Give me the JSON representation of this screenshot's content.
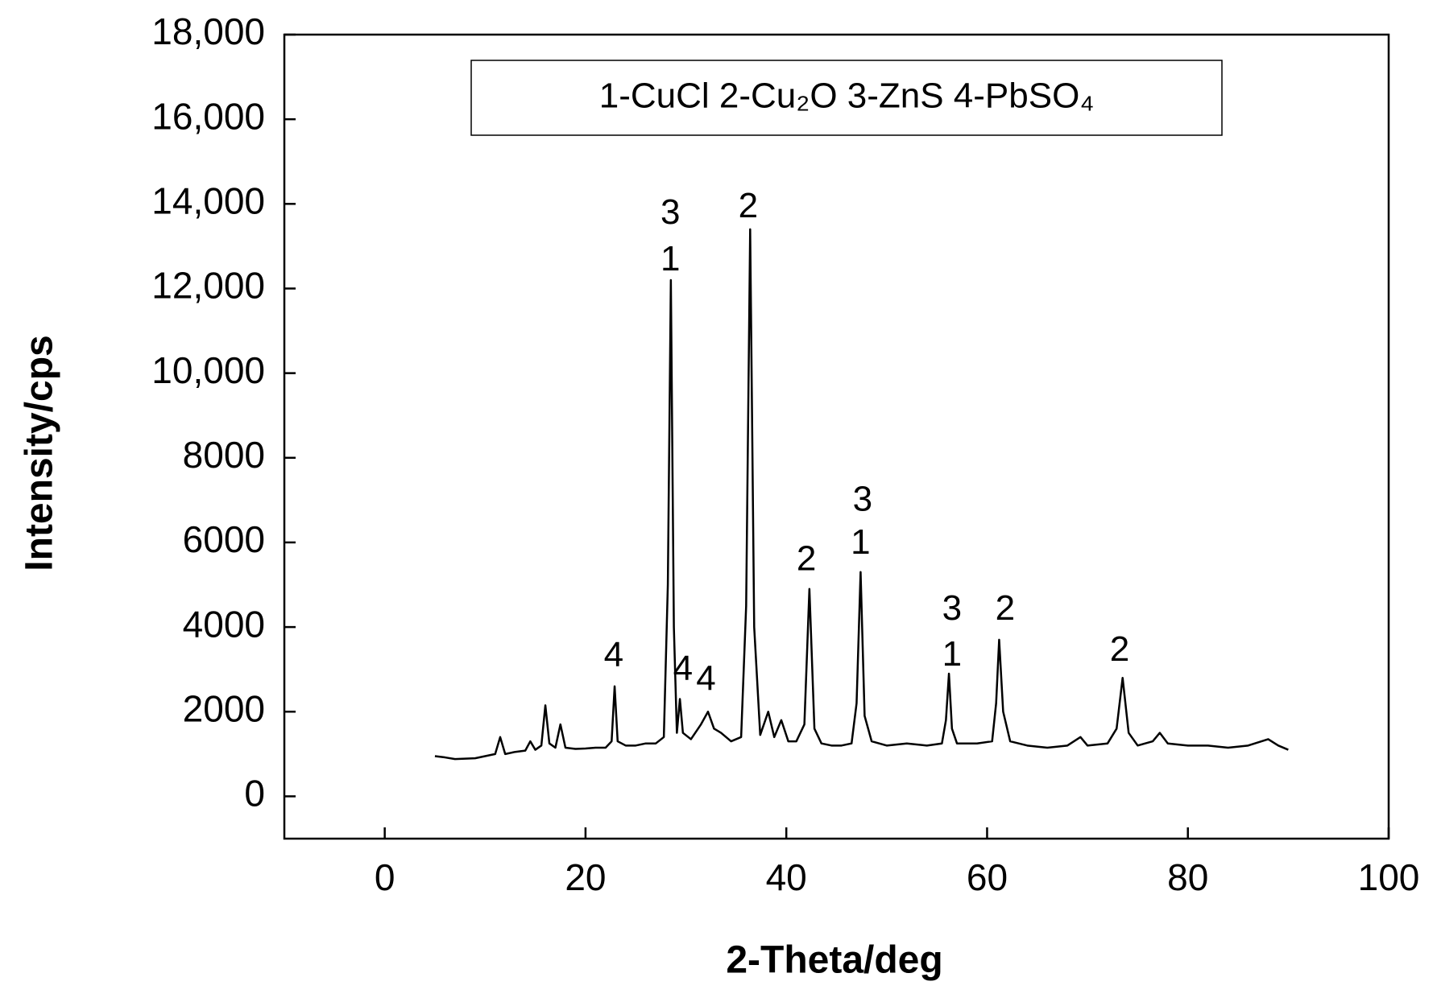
{
  "chart_data": {
    "type": "line",
    "annotation_box": "1-CuCl  2-Cu₂O 3-ZnS  4-PbSO₄",
    "xlabel": "2-Theta/deg",
    "ylabel": "Intensity/cps",
    "xlim": [
      -10,
      100
    ],
    "ylim": [
      -1000,
      18000
    ],
    "xticks": [
      0,
      20,
      40,
      60,
      80,
      100
    ],
    "yticks": [
      0,
      2000,
      4000,
      6000,
      8000,
      {
        "value": 10000,
        "label": "10,000"
      },
      {
        "value": 12000,
        "label": "12,000"
      },
      {
        "value": 14000,
        "label": "14,000"
      },
      {
        "value": 16000,
        "label": "16,000"
      },
      {
        "value": 18000,
        "label": "18,000"
      }
    ],
    "x": [
      5,
      6,
      7,
      8,
      9,
      10,
      11,
      11.5,
      12,
      13,
      14,
      14.5,
      15,
      15.6,
      16,
      16.4,
      17,
      17.5,
      18,
      19,
      20,
      21,
      22,
      22.6,
      22.9,
      23.2,
      24,
      25,
      26,
      27,
      27.8,
      28.2,
      28.5,
      28.8,
      29.1,
      29.4,
      29.7,
      30.5,
      31.5,
      32.2,
      32.8,
      33.5,
      34.5,
      35.5,
      36.0,
      36.4,
      36.8,
      37.4,
      38.2,
      38.8,
      39.5,
      40.2,
      41,
      41.8,
      42.3,
      42.8,
      43.5,
      44.5,
      45.5,
      46.5,
      47.0,
      47.4,
      47.8,
      48.5,
      50,
      52,
      54,
      55.5,
      55.9,
      56.2,
      56.5,
      57,
      59,
      60.5,
      60.9,
      61.2,
      61.6,
      62.3,
      64,
      66,
      68,
      69.3,
      70,
      72,
      72.9,
      73.5,
      74.1,
      75,
      76.5,
      77.2,
      78,
      80,
      82,
      84,
      86,
      88,
      89,
      90
    ],
    "series": [
      {
        "color": "#000000",
        "values": [
          950,
          920,
          880,
          890,
          900,
          950,
          1000,
          1400,
          1000,
          1050,
          1080,
          1300,
          1100,
          1200,
          2150,
          1250,
          1150,
          1700,
          1150,
          1120,
          1130,
          1150,
          1150,
          1300,
          2600,
          1300,
          1200,
          1200,
          1250,
          1250,
          1400,
          5000,
          12200,
          4000,
          1500,
          2300,
          1500,
          1350,
          1700,
          2000,
          1600,
          1500,
          1300,
          1400,
          4500,
          13400,
          4000,
          1450,
          2000,
          1400,
          1800,
          1300,
          1300,
          1700,
          4900,
          1600,
          1250,
          1200,
          1200,
          1250,
          2200,
          5300,
          1900,
          1300,
          1200,
          1250,
          1200,
          1250,
          1800,
          2900,
          1600,
          1250,
          1250,
          1300,
          2200,
          3700,
          2000,
          1300,
          1200,
          1150,
          1200,
          1400,
          1200,
          1250,
          1600,
          2800,
          1500,
          1200,
          1300,
          1500,
          1250,
          1200,
          1200,
          1150,
          1200,
          1350,
          1200,
          1100
        ]
      }
    ],
    "annotations": [
      {
        "text": "3",
        "x": 28.45,
        "y": 13750
      },
      {
        "text": "1",
        "x": 28.45,
        "y": 12650
      },
      {
        "text": "2",
        "x": 36.2,
        "y": 13900
      },
      {
        "text": "2",
        "x": 42.0,
        "y": 5560
      },
      {
        "text": "3",
        "x": 47.6,
        "y": 6970
      },
      {
        "text": "1",
        "x": 47.4,
        "y": 5950
      },
      {
        "text": "3",
        "x": 56.5,
        "y": 4390
      },
      {
        "text": "1",
        "x": 56.5,
        "y": 3310
      },
      {
        "text": "2",
        "x": 61.8,
        "y": 4390
      },
      {
        "text": "2",
        "x": 73.2,
        "y": 3420
      },
      {
        "text": "4",
        "x": 22.8,
        "y": 3290
      },
      {
        "text": "4",
        "x": 29.7,
        "y": 2970
      },
      {
        "text": "4",
        "x": 32.0,
        "y": 2730
      }
    ]
  }
}
